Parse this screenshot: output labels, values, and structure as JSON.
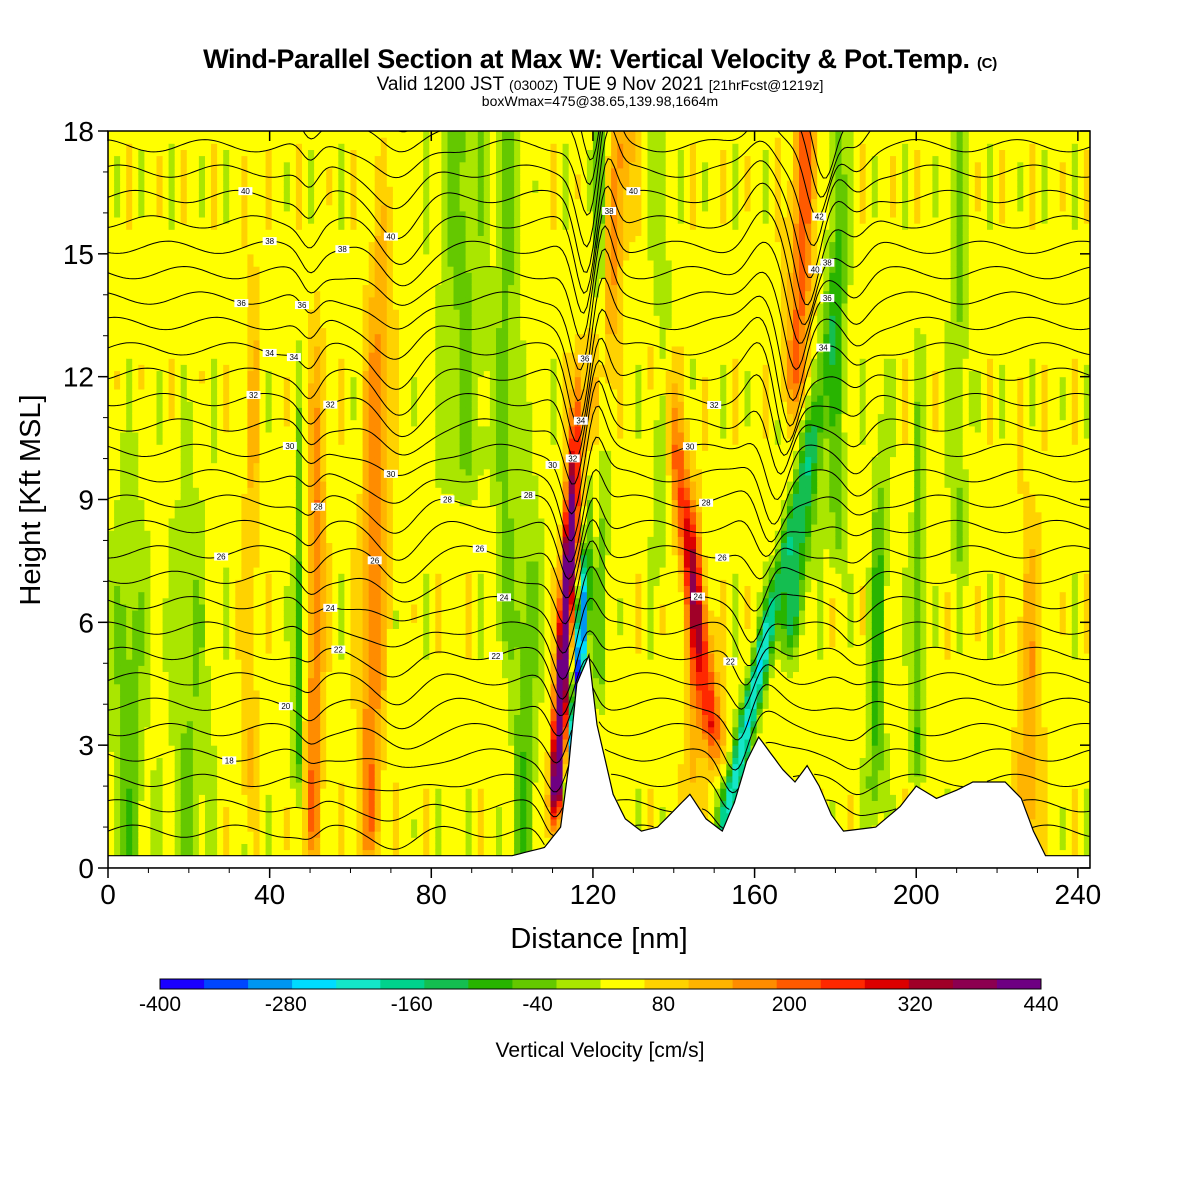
{
  "chart_data": {
    "type": "heatmap",
    "title_main": "Wind-Parallel Section at Max W: Vertical Velocity & Pot.Temp.",
    "title_mark": "(C)",
    "subtitle_a": "Valid 1200 JST",
    "subtitle_b": "(0300Z)",
    "subtitle_c": "TUE 9 Nov 2021",
    "subtitle_d": "[21hrFcst@1219z]",
    "subtitle2": "boxWmax=475@38.65,139.98,1664m",
    "xlabel": "Distance [nm]",
    "ylabel": "Height [Kft MSL]",
    "xlim": [
      0,
      243
    ],
    "ylim": [
      0,
      18
    ],
    "xticks": [
      "0",
      "40",
      "80",
      "120",
      "160",
      "200",
      "240"
    ],
    "yticks": [
      "0",
      "3",
      "6",
      "9",
      "12",
      "15",
      "18"
    ],
    "colorbar": {
      "label": "Vertical Velocity [cm/s]",
      "ticks": [
        "-400",
        "-280",
        "-160",
        "-40",
        "80",
        "200",
        "320",
        "440"
      ],
      "colors": [
        "#1a00ff",
        "#0046ff",
        "#0096f0",
        "#00dcff",
        "#14e6c8",
        "#00d28c",
        "#14be50",
        "#28b400",
        "#64c800",
        "#aae600",
        "#ffff00",
        "#ffd200",
        "#ffb400",
        "#ff8c00",
        "#ff5a00",
        "#ff2800",
        "#dc0000",
        "#a00028",
        "#8c0050",
        "#6e0082"
      ]
    },
    "terrain_kft": [
      [
        0,
        0.3
      ],
      [
        60,
        0.3
      ],
      [
        100,
        0.3
      ],
      [
        108,
        0.5
      ],
      [
        112,
        1.0
      ],
      [
        114,
        2.5
      ],
      [
        116,
        4.5
      ],
      [
        119,
        5.2
      ],
      [
        121,
        3.5
      ],
      [
        125,
        1.8
      ],
      [
        128,
        1.2
      ],
      [
        132,
        0.9
      ],
      [
        136,
        1.0
      ],
      [
        140,
        1.4
      ],
      [
        144,
        1.8
      ],
      [
        148,
        1.2
      ],
      [
        152,
        0.9
      ],
      [
        155,
        1.6
      ],
      [
        158,
        2.6
      ],
      [
        161,
        3.2
      ],
      [
        164,
        2.8
      ],
      [
        167,
        2.4
      ],
      [
        170,
        2.1
      ],
      [
        173,
        2.5
      ],
      [
        176,
        2.0
      ],
      [
        179,
        1.3
      ],
      [
        182,
        0.9
      ],
      [
        190,
        1.0
      ],
      [
        196,
        1.5
      ],
      [
        200,
        2.0
      ],
      [
        205,
        1.7
      ],
      [
        210,
        1.9
      ],
      [
        214,
        2.1
      ],
      [
        222,
        2.1
      ],
      [
        226,
        1.7
      ],
      [
        229,
        0.9
      ],
      [
        232,
        0.3
      ],
      [
        243,
        0.3
      ]
    ],
    "theta_levels_c": [
      15,
      16,
      17,
      18,
      19,
      20,
      21,
      22,
      23,
      24,
      25,
      26,
      27,
      28,
      29,
      30,
      31,
      32,
      33,
      34,
      35,
      36,
      37,
      38,
      39,
      40,
      41,
      42,
      43,
      44
    ],
    "contour_labels": [
      "40",
      "38",
      "36",
      "34",
      "32",
      "30",
      "28",
      "26",
      "24",
      "22",
      "20",
      "18",
      "40",
      "38",
      "36",
      "34",
      "32",
      "30",
      "28",
      "26",
      "24",
      "22",
      "42",
      "40",
      "38",
      "36",
      "34",
      "32",
      "30",
      "28",
      "26",
      "24",
      "22",
      "40",
      "38",
      "36",
      "34",
      "32",
      "30",
      "28",
      "26"
    ],
    "features": [
      {
        "kind": "updraft",
        "x_nm": 112,
        "peak_cm_s": 475
      },
      {
        "kind": "downdraft",
        "x_nm": 116,
        "peak_cm_s": -400
      },
      {
        "kind": "updraft",
        "x_nm": 150,
        "peak_cm_s": 250
      },
      {
        "kind": "downdraft",
        "x_nm": 157,
        "peak_cm_s": -250
      },
      {
        "kind": "updraft",
        "x_nm": 65,
        "peak_cm_s": 150
      },
      {
        "kind": "updraft",
        "x_nm": 50,
        "peak_cm_s": 150
      }
    ]
  }
}
